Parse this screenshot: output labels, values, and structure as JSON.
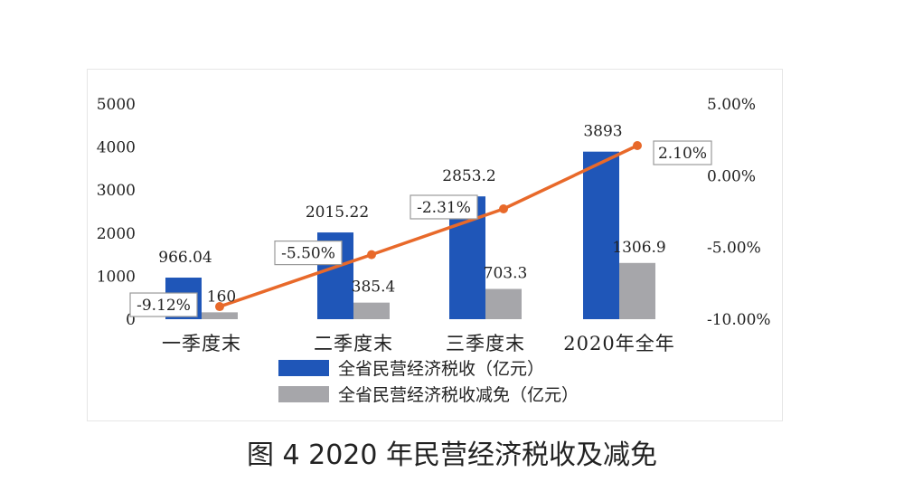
{
  "caption": "图 4 2020 年民营经济税收及减免",
  "chart_data": {
    "type": "bar",
    "categories": [
      "一季度末",
      "二季度末",
      "三季度末",
      "2020年全年"
    ],
    "series": [
      {
        "name": "全省民营经济税收（亿元）",
        "type": "bar",
        "axis": "left",
        "values": [
          966.04,
          2015.22,
          2853.2,
          3893
        ],
        "labels": [
          "966.04",
          "2015.22",
          "2853.2",
          "3893"
        ],
        "color": "#1f56b8"
      },
      {
        "name": "全省民营经济税收减免（亿元）",
        "type": "bar",
        "axis": "left",
        "values": [
          160,
          385.4,
          703.3,
          1306.9
        ],
        "labels": [
          "160",
          "385.4",
          "703.3",
          "1306.9"
        ],
        "color": "#a6a6aa"
      },
      {
        "name": "",
        "type": "line",
        "axis": "right",
        "values": [
          -9.12,
          -5.5,
          -2.31,
          2.1
        ],
        "labels": [
          "-9.12%",
          "-5.50%",
          "-2.31%",
          "2.10%"
        ],
        "color": "#e8692a"
      }
    ],
    "left_axis": {
      "ylim": [
        0,
        5000
      ],
      "ticks": [
        "0",
        "1000",
        "2000",
        "3000",
        "4000",
        "5000"
      ]
    },
    "right_axis": {
      "ylim": [
        -10,
        5
      ],
      "ticks": [
        "-10.00%",
        "-5.00%",
        "0.00%",
        "5.00%"
      ]
    },
    "legend": "bottom",
    "grid": false
  }
}
